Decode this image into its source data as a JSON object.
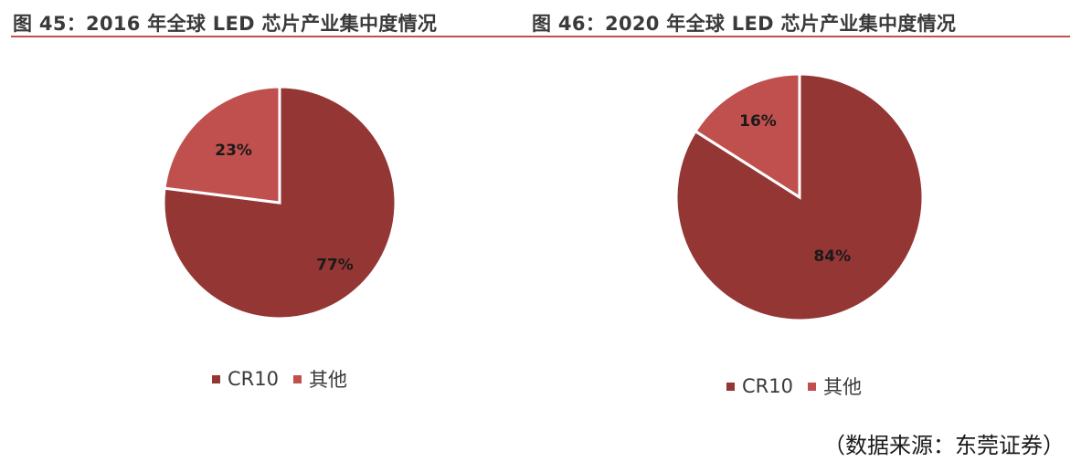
{
  "header": {
    "left_title": "图 45：2016 年全球 LED 芯片产业集中度情况",
    "right_title": "图 46：2020 年全球 LED 芯片产业集中度情况"
  },
  "colors": {
    "cr10": "#943634",
    "other": "#c0504d",
    "rule": "#c0504d"
  },
  "chart_data": [
    {
      "type": "pie",
      "title": "图 45：2016 年全球 LED 芯片产业集中度情况",
      "categories": [
        "CR10",
        "其他"
      ],
      "values": [
        77,
        23
      ],
      "labels": [
        "77%",
        "23%"
      ],
      "colors": [
        "#943634",
        "#c0504d"
      ],
      "legend": "bottom"
    },
    {
      "type": "pie",
      "title": "图 46：2020 年全球 LED 芯片产业集中度情况",
      "categories": [
        "CR10",
        "其他"
      ],
      "values": [
        84,
        16
      ],
      "labels": [
        "84%",
        "16%"
      ],
      "colors": [
        "#943634",
        "#c0504d"
      ],
      "legend": "bottom"
    }
  ],
  "legends": {
    "left": [
      "CR10",
      "其他"
    ],
    "right": [
      "CR10",
      "其他"
    ]
  },
  "footer": {
    "source": "（数据来源：东莞证券）"
  }
}
